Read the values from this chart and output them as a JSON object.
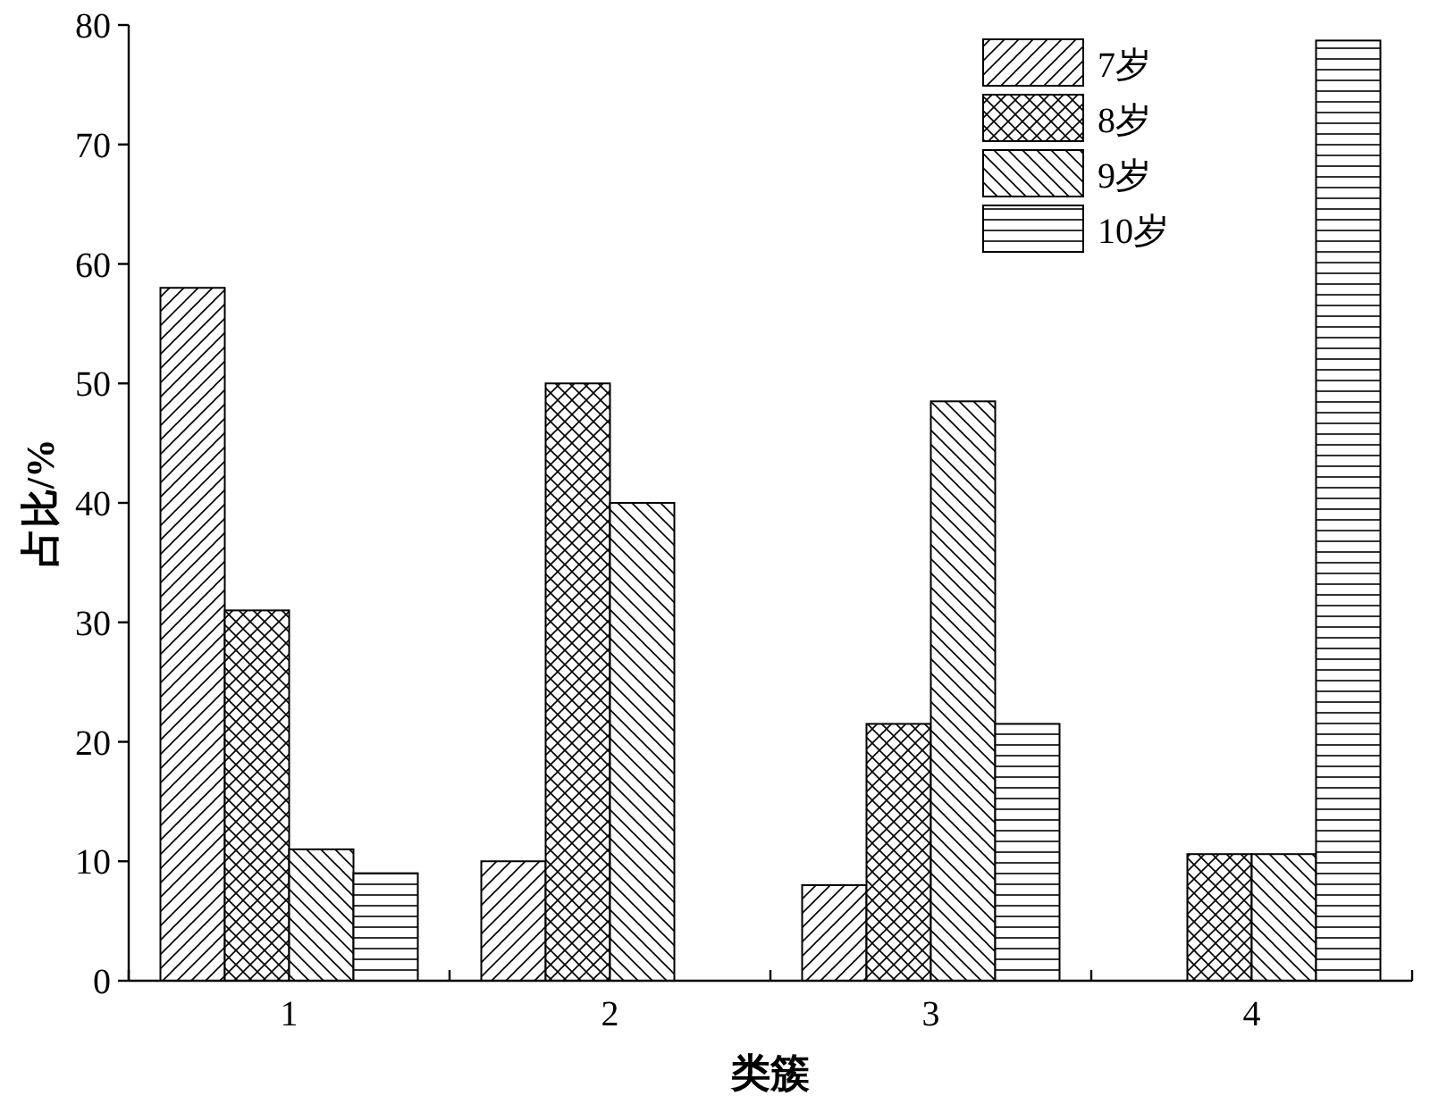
{
  "chart_data": {
    "type": "bar",
    "xlabel": "类簇",
    "ylabel": "占比/%",
    "categories": [
      "1",
      "2",
      "3",
      "4"
    ],
    "series": [
      {
        "name": "7岁",
        "color": "#000000",
        "values": [
          58,
          10,
          8,
          0
        ]
      },
      {
        "name": "8岁",
        "color": "#000000",
        "values": [
          31,
          50,
          21.5,
          10.6
        ]
      },
      {
        "name": "9岁",
        "color": "#000000",
        "values": [
          11,
          40,
          48.5,
          10.6
        ]
      },
      {
        "name": "10岁",
        "color": "#000000",
        "values": [
          9,
          0,
          21.5,
          78.7
        ]
      }
    ],
    "ylim": [
      0,
      80
    ],
    "yticks": [
      0,
      10,
      20,
      30,
      40,
      50,
      60,
      70,
      80
    ],
    "legend": "top right",
    "grid": false
  }
}
